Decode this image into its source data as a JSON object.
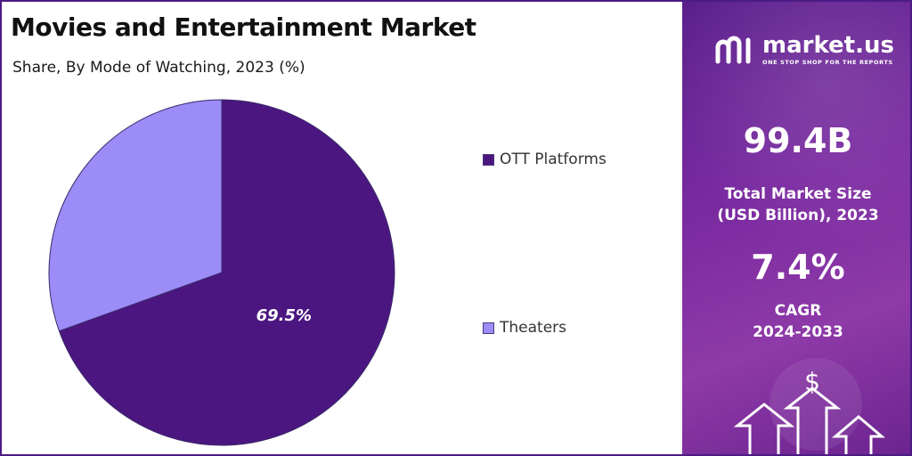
{
  "title": "Movies and Entertainment Market",
  "subtitle": "Share, By Mode of Watching, 2023 (%)",
  "chart_data": {
    "type": "pie",
    "title": "Movies and Entertainment Market",
    "subtitle": "Share, By Mode of Watching, 2023 (%)",
    "slices": [
      {
        "label": "OTT Platforms",
        "value": 69.5,
        "color": "#4b1680",
        "data_label": "69.5%"
      },
      {
        "label": "Theaters",
        "value": 30.5,
        "color": "#9b8cf7",
        "data_label": ""
      }
    ],
    "legend_position": "right"
  },
  "panel": {
    "brand_name": "market.us",
    "brand_tagline": "ONE STOP SHOP FOR THE REPORTS",
    "stat1": {
      "value": "99.4B",
      "label_line1": "Total Market Size",
      "label_line2": "(USD Billion), 2023"
    },
    "stat2": {
      "value": "7.4%",
      "label_line1": "CAGR",
      "label_line2": "2024-2033"
    },
    "colors": {
      "panel_top": "#5a1f8c",
      "panel_mid": "#8e3aa8",
      "accent": "#4b1680"
    },
    "decor_icons": [
      "dollar-icon",
      "arrow-up-icon"
    ]
  }
}
